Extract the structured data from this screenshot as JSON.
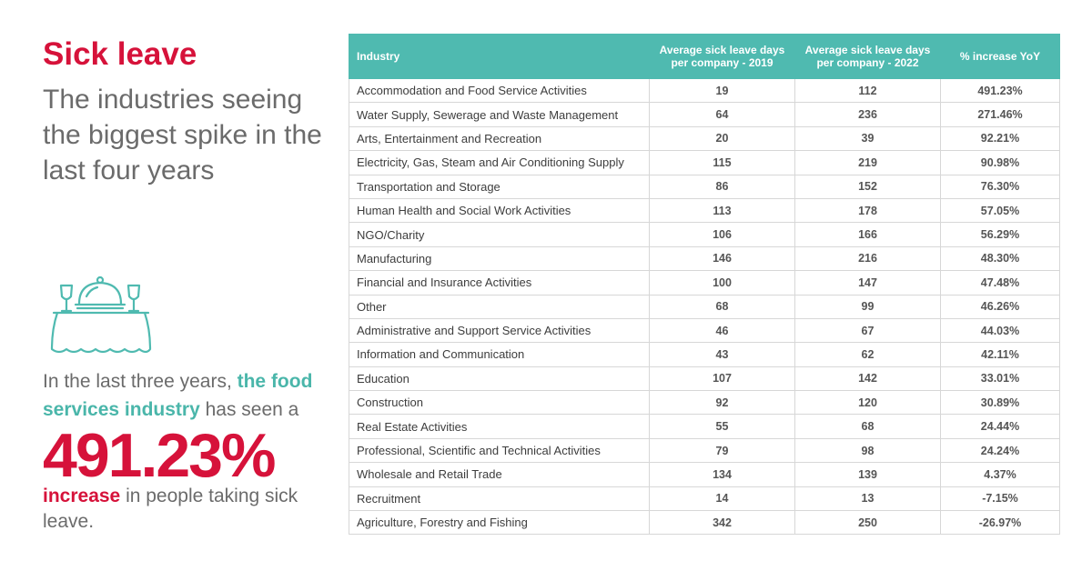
{
  "kicker": "Sick leave",
  "subtitle": "The industries seeing the biggest spike in the last four years",
  "icon": "food-service-table-icon",
  "blurb": {
    "pre": "In the last three years, ",
    "highlight": "the food services industry",
    "post": " has seen a",
    "big_number": "491.23%",
    "increase_word": "increase",
    "tail": " in people taking sick leave."
  },
  "colors": {
    "accent_red": "#d6123a",
    "accent_teal": "#4fbab0"
  },
  "table": {
    "headers": {
      "industry": "Industry",
      "y2019": "Average sick leave days per company - 2019",
      "y2022": "Average sick leave days per company - 2022",
      "pct": "% increase YoY"
    },
    "rows": [
      {
        "industry": "Accommodation and Food Service Activities",
        "y2019": "19",
        "y2022": "112",
        "pct": "491.23%"
      },
      {
        "industry": "Water Supply, Sewerage and Waste Management",
        "y2019": "64",
        "y2022": "236",
        "pct": "271.46%"
      },
      {
        "industry": "Arts, Entertainment and Recreation",
        "y2019": "20",
        "y2022": "39",
        "pct": "92.21%"
      },
      {
        "industry": "Electricity, Gas, Steam and Air Conditioning Supply",
        "y2019": "115",
        "y2022": "219",
        "pct": "90.98%"
      },
      {
        "industry": "Transportation and Storage",
        "y2019": "86",
        "y2022": "152",
        "pct": "76.30%"
      },
      {
        "industry": "Human Health and Social Work Activities",
        "y2019": "113",
        "y2022": "178",
        "pct": "57.05%"
      },
      {
        "industry": "NGO/Charity",
        "y2019": "106",
        "y2022": "166",
        "pct": "56.29%"
      },
      {
        "industry": "Manufacturing",
        "y2019": "146",
        "y2022": "216",
        "pct": "48.30%"
      },
      {
        "industry": "Financial and Insurance Activities",
        "y2019": "100",
        "y2022": "147",
        "pct": "47.48%"
      },
      {
        "industry": "Other",
        "y2019": "68",
        "y2022": "99",
        "pct": "46.26%"
      },
      {
        "industry": "Administrative and Support Service Activities",
        "y2019": "46",
        "y2022": "67",
        "pct": "44.03%"
      },
      {
        "industry": "Information and Communication",
        "y2019": "43",
        "y2022": "62",
        "pct": "42.11%"
      },
      {
        "industry": "Education",
        "y2019": "107",
        "y2022": "142",
        "pct": "33.01%"
      },
      {
        "industry": "Construction",
        "y2019": "92",
        "y2022": "120",
        "pct": "30.89%"
      },
      {
        "industry": "Real Estate Activities",
        "y2019": "55",
        "y2022": "68",
        "pct": "24.44%"
      },
      {
        "industry": "Professional, Scientific and Technical Activities",
        "y2019": "79",
        "y2022": "98",
        "pct": "24.24%"
      },
      {
        "industry": "Wholesale and Retail Trade",
        "y2019": "134",
        "y2022": "139",
        "pct": "4.37%"
      },
      {
        "industry": "Recruitment",
        "y2019": "14",
        "y2022": "13",
        "pct": "-7.15%"
      },
      {
        "industry": "Agriculture, Forestry and Fishing",
        "y2019": "342",
        "y2022": "250",
        "pct": "-26.97%"
      }
    ]
  }
}
